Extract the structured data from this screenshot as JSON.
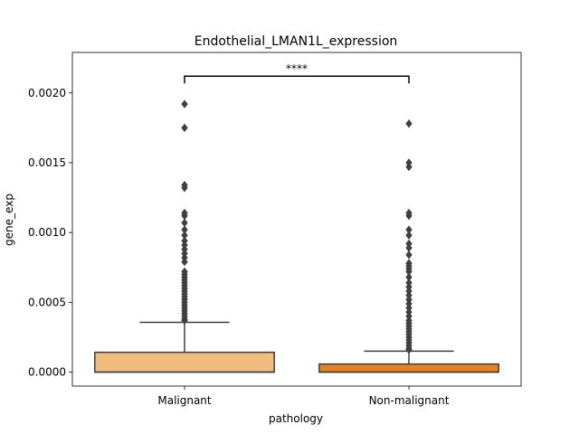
{
  "chart_data": {
    "type": "box",
    "title": "Endothelial_LMAN1L_expression",
    "xlabel": "pathology",
    "ylabel": "gene_exp",
    "categories": [
      "Malignant",
      "Non-malignant"
    ],
    "ylim": [
      -0.0001,
      0.00229
    ],
    "yticks": [
      0.0,
      0.0005,
      0.001,
      0.0015,
      0.002
    ],
    "ytick_labels": [
      "0.0000",
      "0.0005",
      "0.0010",
      "0.0015",
      "0.0020"
    ],
    "boxes": [
      {
        "category": "Malignant",
        "color": "#f0bd7e",
        "min": 0.0,
        "q1": 0.0,
        "median": 0.0,
        "q3": 0.000142,
        "whisker_high": 0.000357,
        "outliers": [
          0.00192,
          0.00175,
          0.00134,
          0.00132,
          0.00114,
          0.00112,
          0.00107,
          0.00102,
          0.00098,
          0.00094,
          0.00091,
          0.00088,
          0.00085,
          0.00082,
          0.00079,
          0.00072,
          0.0007,
          0.00068,
          0.00066,
          0.00064,
          0.00062,
          0.0006,
          0.00058,
          0.00056,
          0.00054,
          0.00052,
          0.0005,
          0.00048,
          0.00046,
          0.00044,
          0.00042,
          0.0004,
          0.00038,
          0.00037
        ]
      },
      {
        "category": "Non-malignant",
        "color": "#e8821e",
        "min": 0.0,
        "q1": 0.0,
        "median": 0.0,
        "q3": 5.8e-05,
        "whisker_high": 0.00015,
        "outliers": [
          0.00178,
          0.0015,
          0.00147,
          0.00114,
          0.00112,
          0.00102,
          0.00098,
          0.00092,
          0.00089,
          0.00084,
          0.00078,
          0.00076,
          0.00074,
          0.00072,
          0.00068,
          0.00064,
          0.00061,
          0.00058,
          0.00055,
          0.00052,
          0.00049,
          0.00046,
          0.00043,
          0.0004,
          0.00037,
          0.00035,
          0.00033,
          0.00031,
          0.00029,
          0.00027,
          0.00025,
          0.00023,
          0.00021,
          0.00019,
          0.00017,
          0.00016
        ]
      }
    ],
    "annotation": {
      "text": "****",
      "between": [
        "Malignant",
        "Non-malignant"
      ],
      "y": 0.00212
    }
  }
}
